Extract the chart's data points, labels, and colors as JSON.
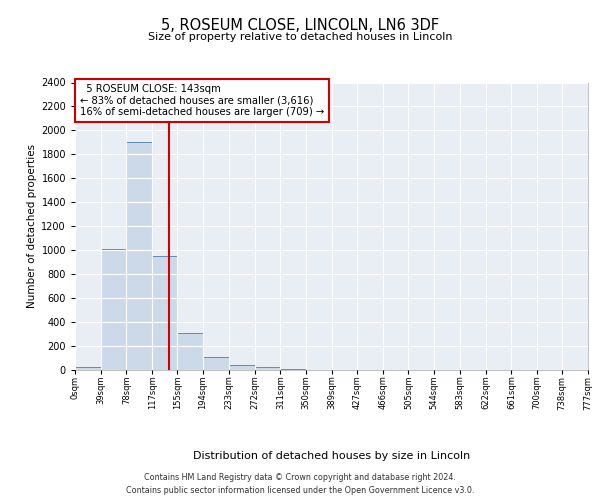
{
  "title_line1": "5, ROSEUM CLOSE, LINCOLN, LN6 3DF",
  "title_line2": "Size of property relative to detached houses in Lincoln",
  "xlabel": "Distribution of detached houses by size in Lincoln",
  "ylabel": "Number of detached properties",
  "property_size": 143,
  "property_label": "5 ROSEUM CLOSE: 143sqm",
  "annotation_line2": "← 83% of detached houses are smaller (3,616)",
  "annotation_line3": "16% of semi-detached houses are larger (709) →",
  "bar_edges": [
    0,
    39,
    78,
    117,
    155,
    194,
    233,
    272,
    311,
    350,
    389,
    427,
    466,
    505,
    544,
    583,
    622,
    661,
    700,
    738,
    777
  ],
  "bar_heights": [
    25,
    1010,
    1900,
    950,
    310,
    105,
    45,
    25,
    5,
    0,
    0,
    0,
    0,
    0,
    0,
    0,
    0,
    0,
    0,
    0
  ],
  "bar_color": "#ccd9e8",
  "bar_edge_color": "#5b8db8",
  "red_line_color": "#cc0000",
  "annotation_box_color": "#cc0000",
  "ylim": [
    0,
    2400
  ],
  "yticks": [
    0,
    200,
    400,
    600,
    800,
    1000,
    1200,
    1400,
    1600,
    1800,
    2000,
    2200,
    2400
  ],
  "footer_line1": "Contains HM Land Registry data © Crown copyright and database right 2024.",
  "footer_line2": "Contains public sector information licensed under the Open Government Licence v3.0.",
  "bg_color": "#e8eef4",
  "fig_bg_color": "#ffffff"
}
